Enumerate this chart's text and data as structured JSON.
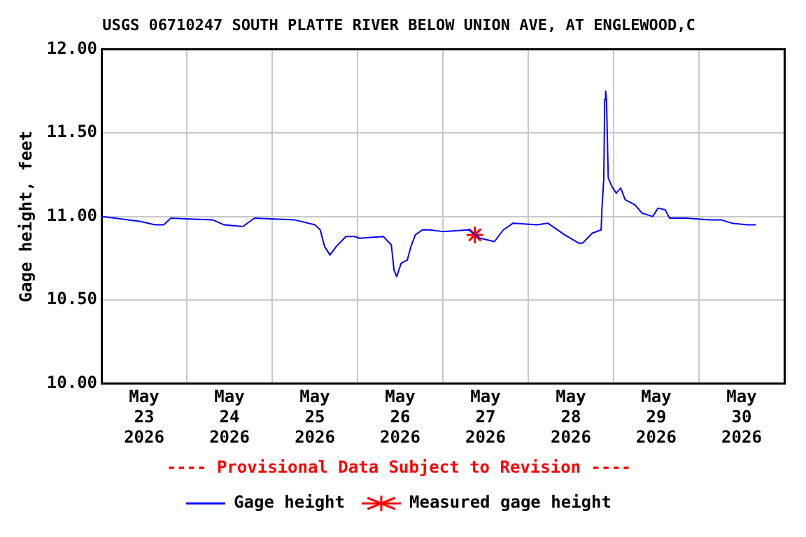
{
  "chart_data": {
    "type": "line",
    "title": "USGS 06710247 SOUTH PLATTE RIVER BELOW UNION AVE, AT ENGLEWOOD,C",
    "ylabel": "Gage height, feet",
    "annotations": [
      "---- Provisional Data Subject to Revision ----"
    ],
    "xlim": [
      "2026-05-23",
      "2026-05-31"
    ],
    "xticks": [
      {
        "value": "2026-05-23T12:00",
        "label": "May 23 2026"
      },
      {
        "value": "2026-05-24",
        "label": null
      },
      {
        "value": "2026-05-24T12:00",
        "label": "May 24 2026"
      },
      {
        "value": "2026-05-25",
        "label": null
      },
      {
        "value": "2026-05-25T12:00",
        "label": "May 25 2026"
      },
      {
        "value": "2026-05-26",
        "label": null
      },
      {
        "value": "2026-05-26T12:00",
        "label": "May 26 2026"
      },
      {
        "value": "2026-05-27",
        "label": null
      },
      {
        "value": "2026-05-27T12:00",
        "label": "May 27 2026"
      },
      {
        "value": "2026-05-28",
        "label": null
      },
      {
        "value": "2026-05-28T12:00",
        "label": "May 28 2026"
      },
      {
        "value": "2026-05-29",
        "label": null
      },
      {
        "value": "2026-05-29T12:00",
        "label": "May 29 2026"
      },
      {
        "value": "2026-05-30",
        "label": null
      },
      {
        "value": "2026-05-30T12:00",
        "label": "May 30 2026"
      }
    ],
    "ylim": [
      10,
      12
    ],
    "yticks": [
      {
        "value": 10,
        "label": "10.00"
      },
      {
        "value": 10.5,
        "label": "10.50"
      },
      {
        "value": 11,
        "label": "11.00"
      },
      {
        "value": 11.5,
        "label": "11.50"
      },
      {
        "value": 12,
        "label": "12.00"
      }
    ],
    "grid": true,
    "legend": "bottom",
    "series": [
      {
        "name": "Gage height",
        "type": "line",
        "color": "#0000ff",
        "marker": "none",
        "x": [
          "2026-05-23T00:00",
          "2026-05-23T11:00",
          "2026-05-23T15:00",
          "2026-05-23T17:30",
          "2026-05-23T19:30",
          "2026-05-24T07:15",
          "2026-05-24T10:30",
          "2026-05-24T15:45",
          "2026-05-24T19:00",
          "2026-05-25T06:15",
          "2026-05-25T12:00",
          "2026-05-25T13:30",
          "2026-05-25T14:45",
          "2026-05-25T16:15",
          "2026-05-25T18:00",
          "2026-05-25T20:45",
          "2026-05-25T23:15",
          "2026-05-26T00:30",
          "2026-05-26T07:15",
          "2026-05-26T09:30",
          "2026-05-26T10:15",
          "2026-05-26T11:00",
          "2026-05-26T12:15",
          "2026-05-26T14:00",
          "2026-05-26T15:00",
          "2026-05-26T16:15",
          "2026-05-26T18:15",
          "2026-05-26T20:15",
          "2026-05-27T00:00",
          "2026-05-27T07:15",
          "2026-05-27T10:30",
          "2026-05-27T14:30",
          "2026-05-27T17:00",
          "2026-05-27T19:45",
          "2026-05-28T02:30",
          "2026-05-28T05:30",
          "2026-05-28T10:15",
          "2026-05-28T14:15",
          "2026-05-28T15:15",
          "2026-05-28T18:00",
          "2026-05-28T20:30",
          "2026-05-28T20:45",
          "2026-05-28T21:15",
          "2026-05-28T21:30",
          "2026-05-28T21:45",
          "2026-05-28T22:00",
          "2026-05-28T22:30",
          "2026-05-28T23:30",
          "2026-05-29T00:45",
          "2026-05-29T02:00",
          "2026-05-29T03:15",
          "2026-05-29T06:00",
          "2026-05-29T08:00",
          "2026-05-29T11:00",
          "2026-05-29T12:30",
          "2026-05-29T14:30",
          "2026-05-29T15:45",
          "2026-05-29T20:30",
          "2026-05-30T03:00",
          "2026-05-30T06:15",
          "2026-05-30T09:15",
          "2026-05-30T13:30",
          "2026-05-30T16:00"
        ],
        "values": [
          11.0,
          10.97,
          10.95,
          10.95,
          10.99,
          10.98,
          10.95,
          10.94,
          10.99,
          10.98,
          10.95,
          10.92,
          10.82,
          10.77,
          10.82,
          10.88,
          10.88,
          10.87,
          10.88,
          10.83,
          10.68,
          10.64,
          10.72,
          10.74,
          10.82,
          10.89,
          10.92,
          10.92,
          10.91,
          10.92,
          10.87,
          10.85,
          10.92,
          10.96,
          10.95,
          10.96,
          10.89,
          10.84,
          10.84,
          10.9,
          10.92,
          11.06,
          11.23,
          11.7,
          11.75,
          11.7,
          11.23,
          11.18,
          11.14,
          11.17,
          11.1,
          11.07,
          11.02,
          11.0,
          11.05,
          11.04,
          10.99,
          10.99,
          10.98,
          10.98,
          10.96,
          10.95,
          10.95
        ]
      },
      {
        "name": "Measured gage height",
        "type": "scatter",
        "color": "#ff0000",
        "marker": "cross",
        "x": [
          "2026-05-27T09:00"
        ],
        "values": [
          10.89
        ]
      }
    ]
  }
}
